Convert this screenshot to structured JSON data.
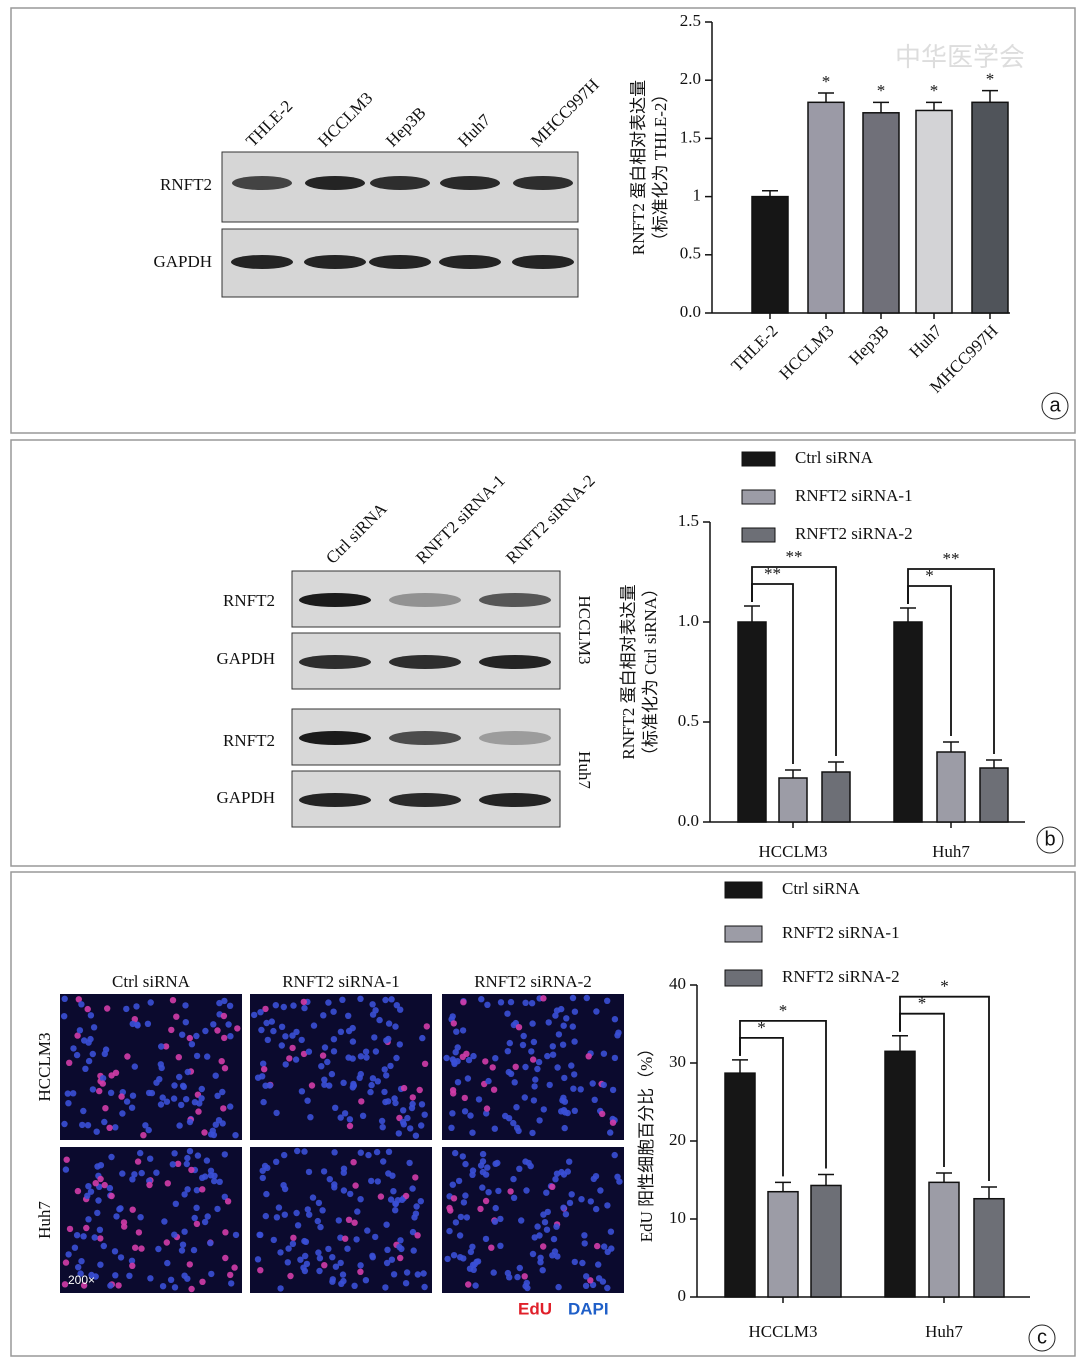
{
  "watermark": "中华医学会",
  "panels": [
    "a",
    "b",
    "c"
  ],
  "blots": [
    {
      "lanes": [
        "THLE-2",
        "HCCLM3",
        "Hep3B",
        "Huh7",
        "MHCC997H"
      ],
      "rows": [
        "RNFT2",
        "GAPDH"
      ]
    },
    {
      "lanes": [
        "Ctrl siRNA",
        "RNFT2 siRNA-1",
        "RNFT2 siRNA-2"
      ],
      "rows": [
        "RNFT2",
        "GAPDH",
        "RNFT2",
        "GAPDH"
      ],
      "cell_lines": [
        "HCCLM3",
        "Huh7"
      ]
    }
  ],
  "images": {
    "columns": [
      "Ctrl siRNA",
      "RNFT2 siRNA-1",
      "RNFT2 siRNA-2"
    ],
    "rows": [
      "HCCLM3",
      "Huh7"
    ],
    "magnification": "200×",
    "stains": [
      "EdU",
      "DAPI"
    ]
  },
  "chart_data": [
    {
      "type": "bar",
      "ylabel": [
        "RNFT2 蛋白相对表达量",
        "（标准化为 THLE-2）"
      ],
      "categories": [
        "THLE-2",
        "HCCLM3",
        "Hep3B",
        "Huh7",
        "MHCC997H"
      ],
      "values": [
        1.0,
        1.81,
        1.72,
        1.74,
        1.81
      ],
      "errors": [
        0.05,
        0.08,
        0.09,
        0.07,
        0.1
      ],
      "colors": [
        "#161616",
        "#9b9aa6",
        "#707079",
        "#d3d3d6",
        "#50545a"
      ],
      "annotations": [
        null,
        "*",
        "*",
        "*",
        "*"
      ],
      "ylim": [
        0,
        2.5
      ],
      "yticks": [
        {
          "value": 0,
          "label": "0.0"
        },
        0.5,
        1,
        1.5,
        {
          "value": 2,
          "label": "2.0"
        },
        2.5
      ]
    },
    {
      "type": "bar",
      "ylabel": [
        "RNFT2 蛋白相对表达量",
        "（标准化为 Ctrl siRNA）"
      ],
      "categories": [
        "HCCLM3",
        "Huh7"
      ],
      "series": [
        {
          "name": "Ctrl siRNA",
          "color": "#161616",
          "values": [
            1.0,
            1.0
          ],
          "errors": [
            0.08,
            0.07
          ]
        },
        {
          "name": "RNFT2 siRNA-1",
          "color": "#9c9ca6",
          "values": [
            0.22,
            0.35
          ],
          "errors": [
            0.04,
            0.05
          ]
        },
        {
          "name": "RNFT2 siRNA-2",
          "color": "#6d6f76",
          "values": [
            0.25,
            0.27
          ],
          "errors": [
            0.05,
            0.04
          ]
        }
      ],
      "comparisons": [
        {
          "category": "HCCLM3",
          "series": "RNFT2 siRNA-1",
          "label": "**"
        },
        {
          "category": "HCCLM3",
          "series": "RNFT2 siRNA-2",
          "label": "**"
        },
        {
          "category": "Huh7",
          "series": "RNFT2 siRNA-1",
          "label": "*"
        },
        {
          "category": "Huh7",
          "series": "RNFT2 siRNA-2",
          "label": "**"
        }
      ],
      "ylim": [
        0,
        1.5
      ],
      "yticks": [
        {
          "value": 0,
          "label": "0.0"
        },
        0.5,
        {
          "value": 1,
          "label": "1.0"
        },
        1.5
      ]
    },
    {
      "type": "bar",
      "ylabel": [
        "EdU 阳性细胞百分比（%）"
      ],
      "categories": [
        "HCCLM3",
        "Huh7"
      ],
      "series": [
        {
          "name": "Ctrl siRNA",
          "color": "#161616",
          "values": [
            28.7,
            31.5
          ],
          "errors": [
            1.7,
            2.0
          ]
        },
        {
          "name": "RNFT2 siRNA-1",
          "color": "#9c9ca6",
          "values": [
            13.5,
            14.7
          ],
          "errors": [
            1.2,
            1.2
          ]
        },
        {
          "name": "RNFT2 siRNA-2",
          "color": "#6d6f76",
          "values": [
            14.3,
            12.6
          ],
          "errors": [
            1.4,
            1.5
          ]
        }
      ],
      "comparisons": [
        {
          "category": "HCCLM3",
          "series": "RNFT2 siRNA-1",
          "label": "*"
        },
        {
          "category": "HCCLM3",
          "series": "RNFT2 siRNA-2",
          "label": "*"
        },
        {
          "category": "Huh7",
          "series": "RNFT2 siRNA-1",
          "label": "*"
        },
        {
          "category": "Huh7",
          "series": "RNFT2 siRNA-2",
          "label": "*"
        }
      ],
      "ylim": [
        0,
        40
      ],
      "yticks": [
        0,
        10,
        20,
        30,
        40
      ]
    }
  ]
}
